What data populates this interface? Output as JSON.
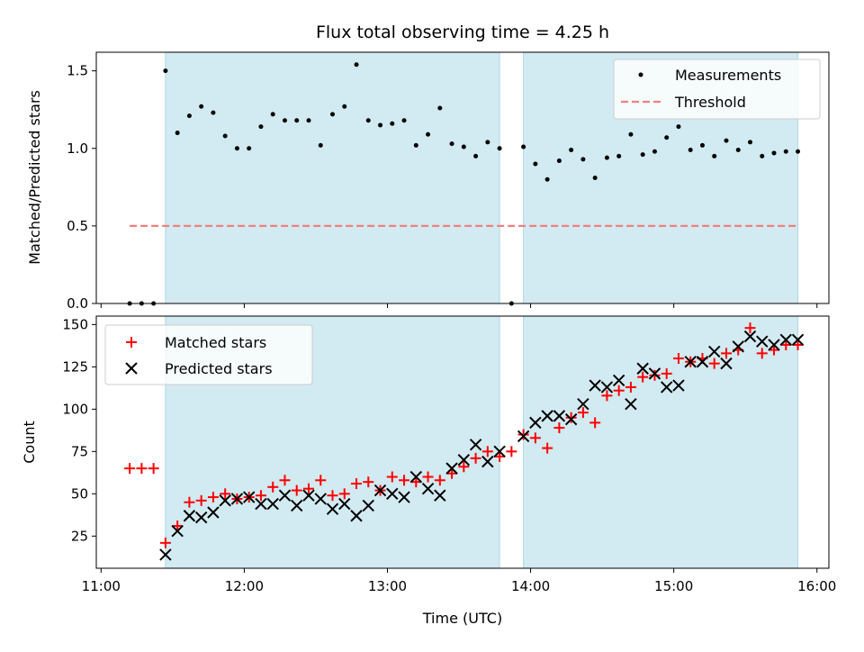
{
  "chart_data": {
    "title": "Flux total observing time = 4.25 h",
    "xlabel": "Time (UTC)",
    "x_range": [
      "10:58",
      "16:05"
    ],
    "x_ticks": [
      "11:00",
      "12:00",
      "13:00",
      "14:00",
      "15:00",
      "16:00"
    ],
    "shaded_spans": [
      [
        "11:27",
        "13:47"
      ],
      [
        "13:57",
        "15:52"
      ]
    ],
    "colors": {
      "shade": "#add8e6",
      "matched": "#ff0000",
      "predicted": "#000000",
      "measurements": "#000000",
      "threshold": "#f08080"
    },
    "panels": [
      {
        "type": "scatter",
        "ylabel": "Matched/Predicted stars",
        "ylim": [
          0,
          1.62
        ],
        "y_ticks": [
          "0.0",
          "0.5",
          "1.0",
          "1.5"
        ],
        "y_tick_values": [
          0,
          0.5,
          1.0,
          1.5
        ],
        "legend": {
          "placement": "top-right",
          "entries": [
            "Measurements",
            "Threshold"
          ]
        },
        "threshold": {
          "name": "Threshold",
          "y": 0.5,
          "x_from": "11:12",
          "x_to": "15:52"
        },
        "series": [
          {
            "name": "Measurements",
            "marker": "dot",
            "points": [
              [
                "11:12",
                0.0
              ],
              [
                "11:17",
                0.0
              ],
              [
                "11:22",
                0.0
              ],
              [
                "11:27",
                1.5
              ],
              [
                "11:32",
                1.1
              ],
              [
                "11:37",
                1.21
              ],
              [
                "11:42",
                1.27
              ],
              [
                "11:47",
                1.23
              ],
              [
                "11:52",
                1.08
              ],
              [
                "11:57",
                1.0
              ],
              [
                "12:02",
                1.0
              ],
              [
                "12:07",
                1.14
              ],
              [
                "12:12",
                1.22
              ],
              [
                "12:17",
                1.18
              ],
              [
                "12:22",
                1.18
              ],
              [
                "12:27",
                1.18
              ],
              [
                "12:32",
                1.02
              ],
              [
                "12:37",
                1.22
              ],
              [
                "12:42",
                1.27
              ],
              [
                "12:47",
                1.54
              ],
              [
                "12:52",
                1.18
              ],
              [
                "12:57",
                1.15
              ],
              [
                "13:02",
                1.16
              ],
              [
                "13:07",
                1.18
              ],
              [
                "13:12",
                1.02
              ],
              [
                "13:17",
                1.09
              ],
              [
                "13:22",
                1.26
              ],
              [
                "13:27",
                1.03
              ],
              [
                "13:32",
                1.01
              ],
              [
                "13:37",
                0.95
              ],
              [
                "13:42",
                1.04
              ],
              [
                "13:47",
                1.0
              ],
              [
                "13:52",
                0.0
              ],
              [
                "13:57",
                1.01
              ],
              [
                "14:02",
                0.9
              ],
              [
                "14:07",
                0.8
              ],
              [
                "14:12",
                0.92
              ],
              [
                "14:17",
                0.99
              ],
              [
                "14:22",
                0.93
              ],
              [
                "14:27",
                0.81
              ],
              [
                "14:32",
                0.94
              ],
              [
                "14:37",
                0.95
              ],
              [
                "14:42",
                1.09
              ],
              [
                "14:47",
                0.96
              ],
              [
                "14:52",
                0.98
              ],
              [
                "14:57",
                1.07
              ],
              [
                "15:02",
                1.14
              ],
              [
                "15:07",
                0.99
              ],
              [
                "15:12",
                1.02
              ],
              [
                "15:17",
                0.95
              ],
              [
                "15:22",
                1.05
              ],
              [
                "15:27",
                0.99
              ],
              [
                "15:32",
                1.04
              ],
              [
                "15:37",
                0.95
              ],
              [
                "15:42",
                0.97
              ],
              [
                "15:47",
                0.98
              ],
              [
                "15:52",
                0.98
              ]
            ]
          }
        ]
      },
      {
        "type": "scatter",
        "ylabel": "Count",
        "ylim": [
          6,
          155
        ],
        "y_ticks": [
          "25",
          "50",
          "75",
          "100",
          "125",
          "150"
        ],
        "y_tick_values": [
          25,
          50,
          75,
          100,
          125,
          150
        ],
        "legend": {
          "placement": "top-left",
          "entries": [
            "Matched stars",
            "Predicted stars"
          ]
        },
        "series": [
          {
            "name": "Matched stars",
            "marker": "plus",
            "points": [
              [
                "11:12",
                65
              ],
              [
                "11:17",
                65
              ],
              [
                "11:22",
                65
              ],
              [
                "11:27",
                21
              ],
              [
                "11:32",
                31
              ],
              [
                "11:37",
                45
              ],
              [
                "11:42",
                46
              ],
              [
                "11:47",
                48
              ],
              [
                "11:52",
                50
              ],
              [
                "11:57",
                47
              ],
              [
                "12:02",
                48
              ],
              [
                "12:07",
                49
              ],
              [
                "12:12",
                54
              ],
              [
                "12:17",
                58
              ],
              [
                "12:22",
                52
              ],
              [
                "12:27",
                53
              ],
              [
                "12:32",
                58
              ],
              [
                "12:37",
                49
              ],
              [
                "12:42",
                50
              ],
              [
                "12:47",
                56
              ],
              [
                "12:52",
                57
              ],
              [
                "12:57",
                52
              ],
              [
                "13:02",
                60
              ],
              [
                "13:07",
                58
              ],
              [
                "13:12",
                57
              ],
              [
                "13:17",
                60
              ],
              [
                "13:22",
                58
              ],
              [
                "13:27",
                62
              ],
              [
                "13:32",
                66
              ],
              [
                "13:37",
                71
              ],
              [
                "13:42",
                75
              ],
              [
                "13:47",
                72
              ],
              [
                "13:52",
                75
              ],
              [
                "13:57",
                85
              ],
              [
                "14:02",
                83
              ],
              [
                "14:07",
                77
              ],
              [
                "14:12",
                89
              ],
              [
                "14:17",
                95
              ],
              [
                "14:22",
                98
              ],
              [
                "14:27",
                92
              ],
              [
                "14:32",
                108
              ],
              [
                "14:37",
                111
              ],
              [
                "14:42",
                113
              ],
              [
                "14:47",
                119
              ],
              [
                "14:52",
                120
              ],
              [
                "14:57",
                121
              ],
              [
                "15:02",
                130
              ],
              [
                "15:07",
                128
              ],
              [
                "15:12",
                130
              ],
              [
                "15:17",
                127
              ],
              [
                "15:22",
                133
              ],
              [
                "15:27",
                135
              ],
              [
                "15:32",
                148
              ],
              [
                "15:37",
                133
              ],
              [
                "15:42",
                135
              ],
              [
                "15:47",
                138
              ],
              [
                "15:52",
                138
              ]
            ]
          },
          {
            "name": "Predicted stars",
            "marker": "x",
            "points": [
              [
                "11:27",
                14
              ],
              [
                "11:32",
                28
              ],
              [
                "11:37",
                37
              ],
              [
                "11:42",
                36
              ],
              [
                "11:47",
                39
              ],
              [
                "11:52",
                46
              ],
              [
                "11:57",
                47
              ],
              [
                "12:02",
                48
              ],
              [
                "12:07",
                44
              ],
              [
                "12:12",
                44
              ],
              [
                "12:17",
                49
              ],
              [
                "12:22",
                43
              ],
              [
                "12:27",
                49
              ],
              [
                "12:32",
                47
              ],
              [
                "12:37",
                41
              ],
              [
                "12:42",
                44
              ],
              [
                "12:47",
                37
              ],
              [
                "12:52",
                43
              ],
              [
                "12:57",
                52
              ],
              [
                "13:02",
                50
              ],
              [
                "13:07",
                48
              ],
              [
                "13:12",
                60
              ],
              [
                "13:17",
                53
              ],
              [
                "13:22",
                49
              ],
              [
                "13:27",
                65
              ],
              [
                "13:32",
                70
              ],
              [
                "13:37",
                79
              ],
              [
                "13:42",
                69
              ],
              [
                "13:47",
                75
              ],
              [
                "13:57",
                84
              ],
              [
                "14:02",
                92
              ],
              [
                "14:07",
                96
              ],
              [
                "14:12",
                96
              ],
              [
                "14:17",
                94
              ],
              [
                "14:22",
                103
              ],
              [
                "14:27",
                114
              ],
              [
                "14:32",
                113
              ],
              [
                "14:37",
                117
              ],
              [
                "14:42",
                103
              ],
              [
                "14:47",
                124
              ],
              [
                "14:52",
                121
              ],
              [
                "14:57",
                113
              ],
              [
                "15:02",
                114
              ],
              [
                "15:07",
                128
              ],
              [
                "15:12",
                128
              ],
              [
                "15:17",
                134
              ],
              [
                "15:22",
                127
              ],
              [
                "15:27",
                137
              ],
              [
                "15:32",
                143
              ],
              [
                "15:37",
                140
              ],
              [
                "15:42",
                138
              ],
              [
                "15:47",
                141
              ],
              [
                "15:52",
                141
              ]
            ]
          }
        ]
      }
    ]
  }
}
